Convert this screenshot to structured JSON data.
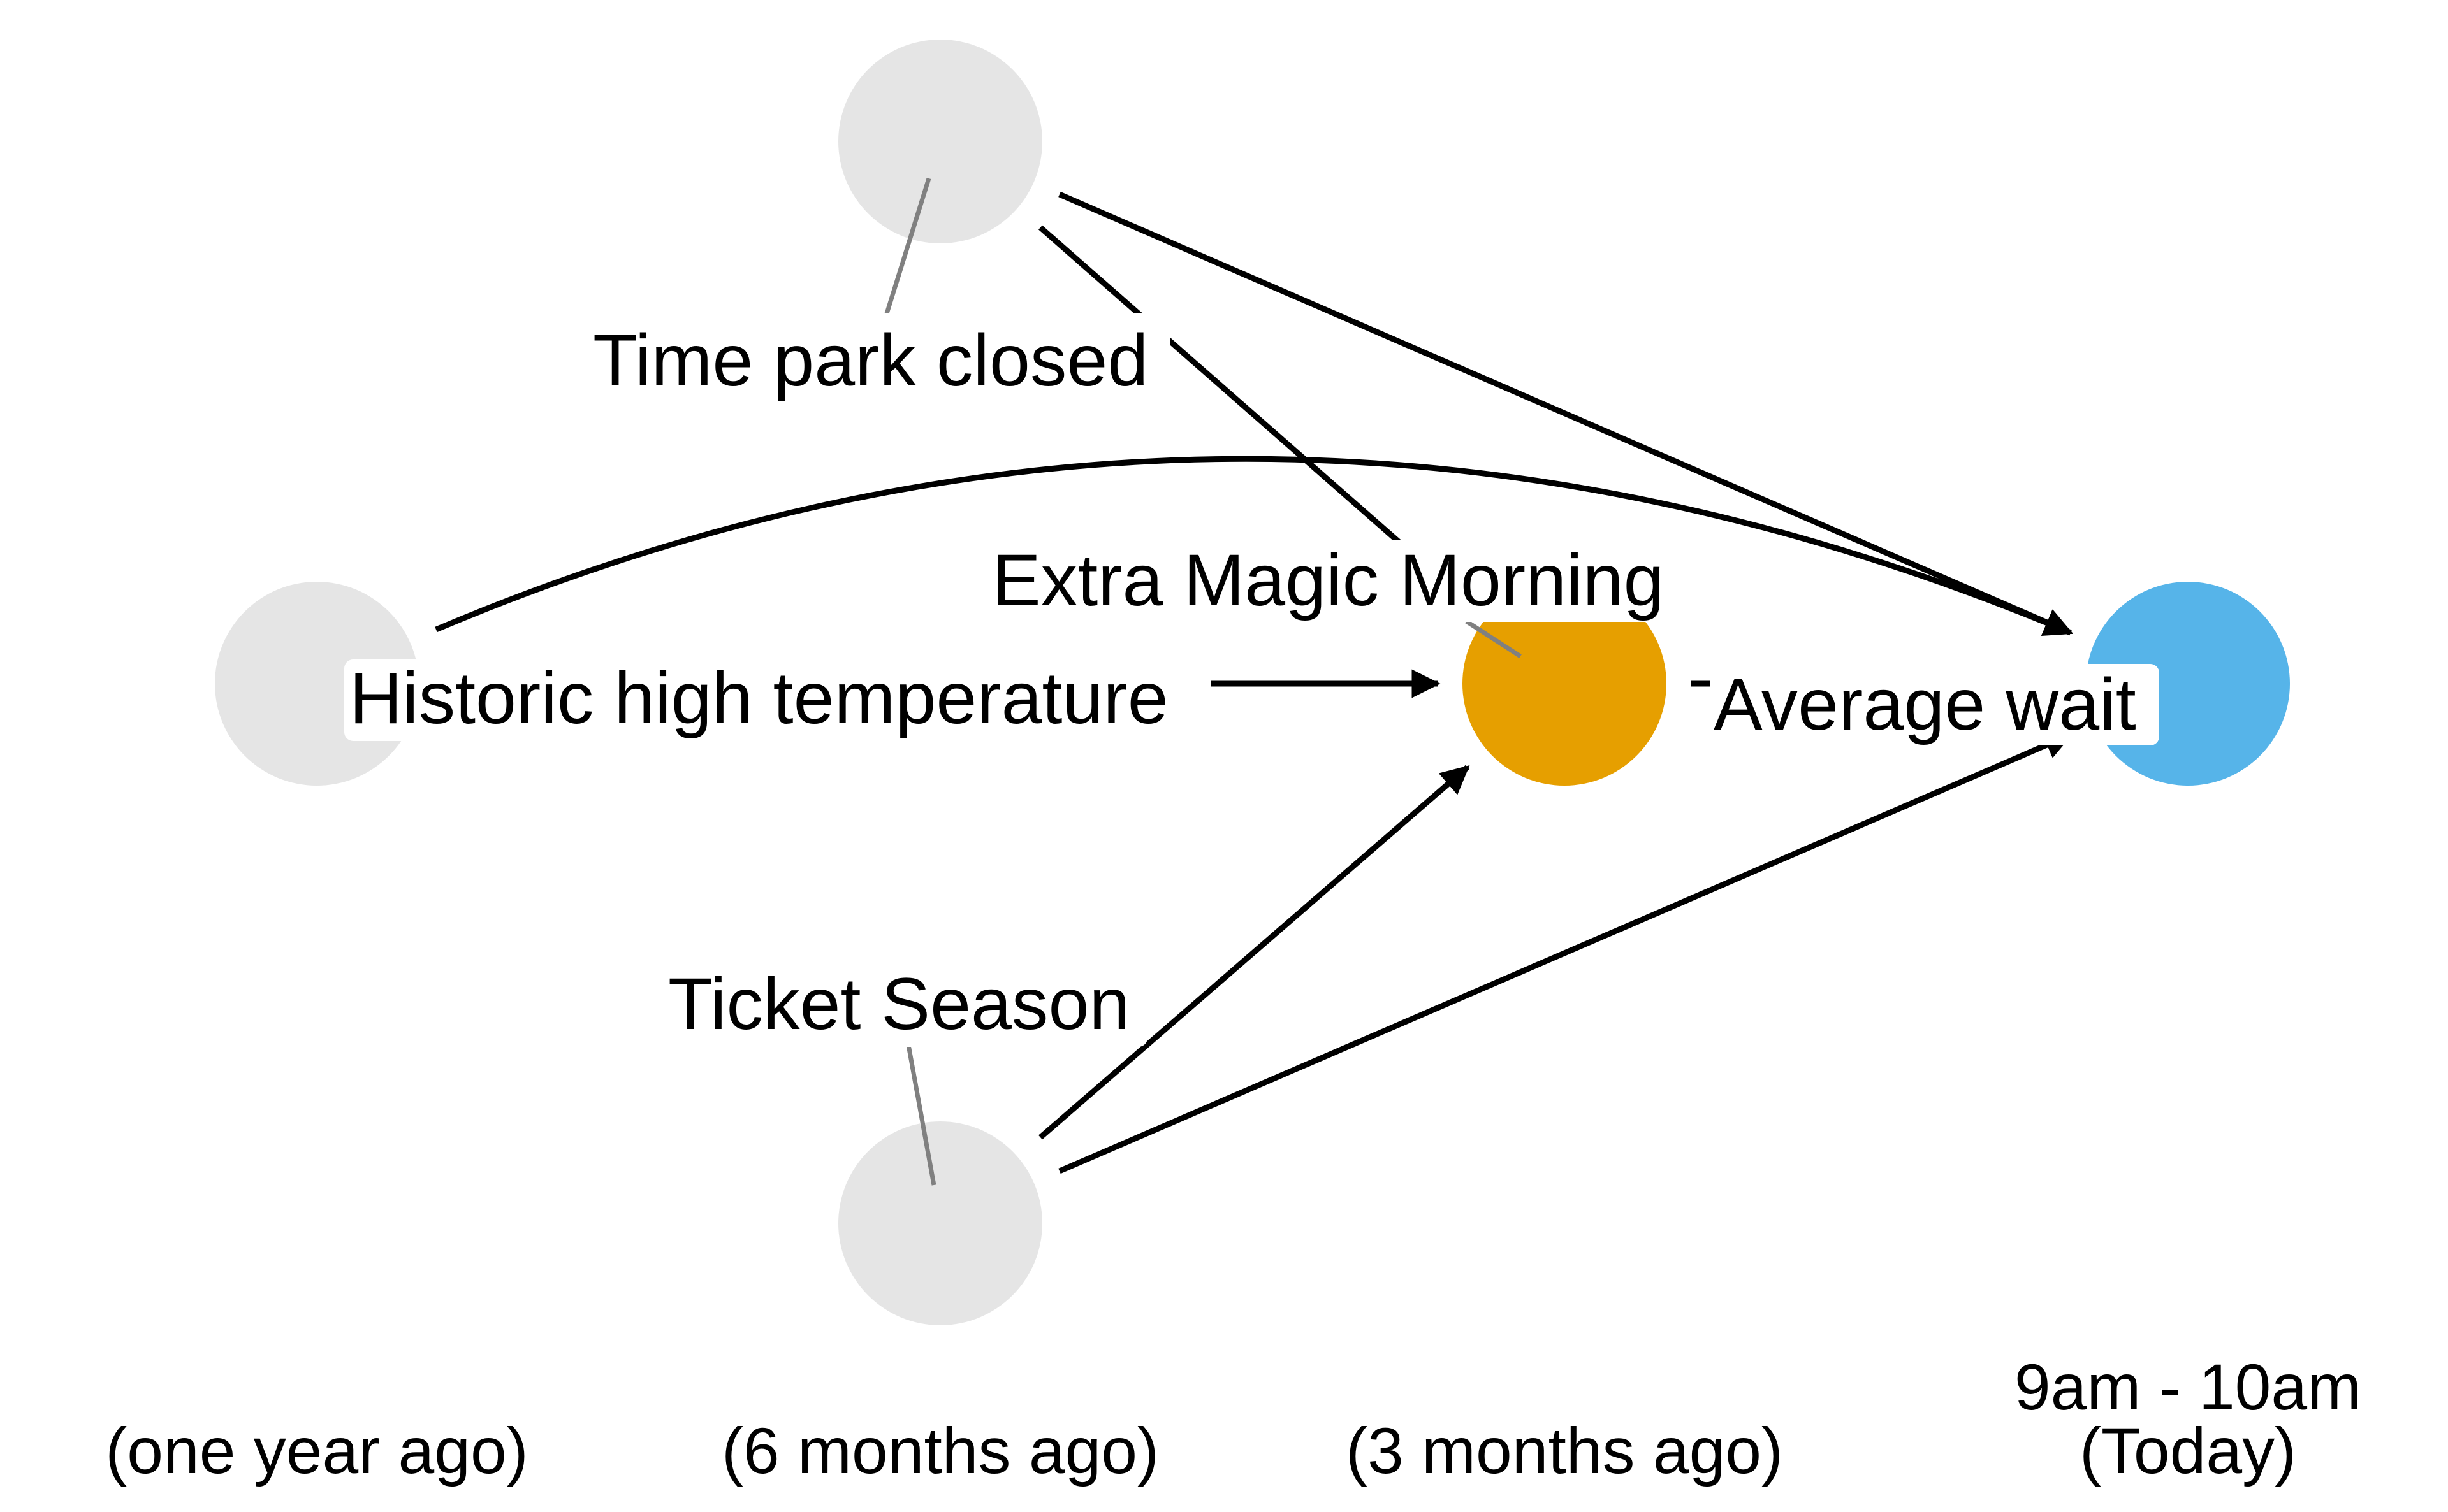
{
  "diagram": {
    "nodes": [
      {
        "id": "park_close",
        "label": "Time park closed",
        "color": "#e5e5e5"
      },
      {
        "id": "temp",
        "label": "Historic high temperature",
        "color": "#e5e5e5"
      },
      {
        "id": "ticket_season",
        "label": "Ticket Season",
        "color": "#e5e5e5"
      },
      {
        "id": "extra_magic",
        "label": "Extra Magic Morning",
        "color": "#e69f00"
      },
      {
        "id": "average_wait",
        "label": "Average wait",
        "color": "#56b4e9"
      }
    ],
    "edges": [
      {
        "from": "park_close",
        "to": "extra_magic"
      },
      {
        "from": "park_close",
        "to": "average_wait"
      },
      {
        "from": "temp",
        "to": "extra_magic"
      },
      {
        "from": "temp",
        "to": "average_wait"
      },
      {
        "from": "ticket_season",
        "to": "extra_magic"
      },
      {
        "from": "ticket_season",
        "to": "average_wait"
      },
      {
        "from": "extra_magic",
        "to": "average_wait"
      }
    ],
    "time_axis": {
      "col1": "(one year ago)",
      "col2": "(6 months ago)",
      "col3": "(3 months ago)",
      "col4_line1": "9am - 10am",
      "col4_line2": "(Today)"
    }
  }
}
